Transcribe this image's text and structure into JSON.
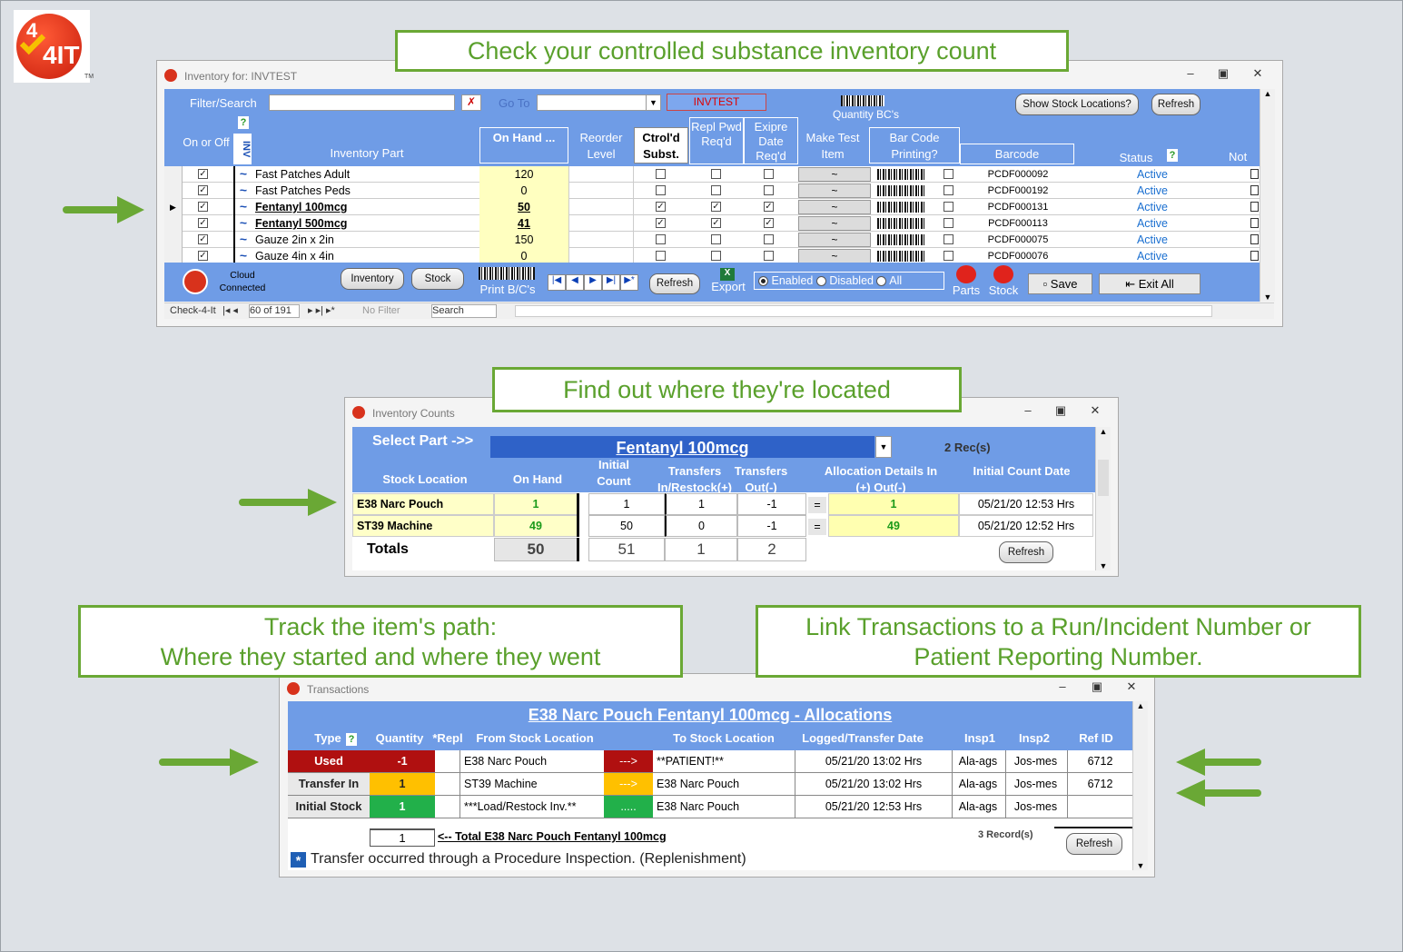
{
  "callouts": {
    "c1": "Check your controlled substance inventory count",
    "c2": "Find out where they're located",
    "c3a": "Track the item's path:",
    "c3b": "Where they started and where they went",
    "c4a": "Link Transactions to a Run/Incident Number or",
    "c4b": "Patient Reporting Number."
  },
  "logo": {
    "text": "4IT",
    "tm": "TM"
  },
  "inv": {
    "title": "Inventory for: INVTEST",
    "filter_label": "Filter/Search",
    "goto_label": "Go To",
    "invtest": "INVTEST",
    "qty_bc": "Quantity BC's",
    "show_stock_btn": "Show Stock Locations?",
    "refresh_btn": "Refresh",
    "headers": {
      "onoff": "On or Off",
      "inv": "INV",
      "part": "Inventory Part",
      "onhand": "On Hand ...",
      "reorder": "Reorder Level",
      "ctrl": "Ctrol'd Subst.",
      "repl": "Repl Pwd Req'd",
      "expire": "Exipre Date Req'd",
      "maketest": "Make Test Item",
      "barcodeprint": "Bar Code Printing?",
      "barcode": "Barcode",
      "status": "Status",
      "notes": "Not"
    },
    "rows": [
      {
        "name": "Fast Patches Adult",
        "onhand": "120",
        "ctrl": false,
        "repl": false,
        "exp": false,
        "code": "PCDF000092",
        "status": "Active",
        "bold": false
      },
      {
        "name": "Fast Patches Peds",
        "onhand": "0",
        "ctrl": false,
        "repl": false,
        "exp": false,
        "code": "PCDF000192",
        "status": "Active",
        "bold": false
      },
      {
        "name": "Fentanyl 100mcg",
        "onhand": "50",
        "ctrl": true,
        "repl": true,
        "exp": true,
        "code": "PCDF000131",
        "status": "Active",
        "bold": true
      },
      {
        "name": "Fentanyl 500mcg",
        "onhand": "41",
        "ctrl": true,
        "repl": true,
        "exp": true,
        "code": "PCDF000113",
        "status": "Active",
        "bold": true
      },
      {
        "name": "Gauze 2in x 2in",
        "onhand": "150",
        "ctrl": false,
        "repl": false,
        "exp": false,
        "code": "PCDF000075",
        "status": "Active",
        "bold": false
      },
      {
        "name": "Gauze 4in x 4in",
        "onhand": "0",
        "ctrl": false,
        "repl": false,
        "exp": false,
        "code": "PCDF000076",
        "status": "Active",
        "bold": false
      }
    ],
    "footer": {
      "cloud": "Cloud",
      "connected": "Connected",
      "inventory_btn": "Inventory",
      "stock_btn": "Stock",
      "print_bc": "Print B/C's",
      "refresh": "Refresh",
      "export": "Export",
      "enabled": "Enabled",
      "disabled": "Disabled",
      "all": "All",
      "parts": "Parts",
      "stock": "Stock",
      "save": "Save",
      "exit": "Exit All"
    },
    "nav": {
      "form": "Check-4-It",
      "record": "60 of 191",
      "nofilter": "No Filter",
      "search": "Search"
    }
  },
  "counts": {
    "title": "Inventory Counts",
    "select_part": "Select Part ->>",
    "part": "Fentanyl 100mcg",
    "recs": "2 Rec(s)",
    "headers": {
      "location": "Stock Location",
      "onhand": "On Hand",
      "initial": "Initial Count",
      "transfers_in": "Transfers In/Restock(+)",
      "transfers_out": "Transfers Out(-)",
      "alloc": "Allocation Details In (+) Out(-)",
      "initdate": "Initial Count Date"
    },
    "rows": [
      {
        "loc": "E38 Narc Pouch",
        "onhand": "1",
        "initial": "1",
        "tin": "1",
        "tout": "-1",
        "eq": "=",
        "alloc": "1",
        "date": "05/21/20  12:53 Hrs"
      },
      {
        "loc": "ST39 Machine",
        "onhand": "49",
        "initial": "50",
        "tin": "0",
        "tout": "-1",
        "eq": "=",
        "alloc": "49",
        "date": "05/21/20  12:52 Hrs"
      }
    ],
    "totals": {
      "label": "Totals",
      "onhand": "50",
      "initial": "51",
      "tin": "1",
      "tout": "2"
    },
    "refresh": "Refresh"
  },
  "trans": {
    "title": "Transactions",
    "heading": "E38 Narc Pouch Fentanyl 100mcg - Allocations",
    "headers": {
      "type": "Type",
      "qty": "Quantity",
      "repl": "*Repl",
      "from": "From Stock Location",
      "to": "To Stock Location",
      "date": "Logged/Transfer Date",
      "insp1": "Insp1",
      "insp2": "Insp2",
      "ref": "Ref ID"
    },
    "rows": [
      {
        "type": "Used",
        "qty": "-1",
        "from": "E38 Narc Pouch",
        "arrow": "--->",
        "to": "**PATIENT!**",
        "date": "05/21/20  13:02 Hrs",
        "insp1": "Ala-ags",
        "insp2": "Jos-mes",
        "ref": "6712"
      },
      {
        "type": "Transfer In",
        "qty": "1",
        "from": "ST39 Machine",
        "arrow": "--->",
        "to": "E38 Narc Pouch",
        "date": "05/21/20  13:02 Hrs",
        "insp1": "Ala-ags",
        "insp2": "Jos-mes",
        "ref": "6712"
      },
      {
        "type": "Initial Stock",
        "qty": "1",
        "from": "***Load/Restock Inv.**",
        "arrow": ".....",
        "to": "E38 Narc Pouch",
        "date": "05/21/20  12:53 Hrs",
        "insp1": "Ala-ags",
        "insp2": "Jos-mes",
        "ref": ""
      }
    ],
    "total_qty": "1",
    "total_label": "<-- Total E38 Narc Pouch Fentanyl 100mcg",
    "records": "3 Record(s)",
    "refresh": "Refresh",
    "note_mark": "*",
    "note": "Transfer occurred through a Procedure Inspection.  (Replenishment)"
  },
  "colors": {
    "callout_border": "#6aa835",
    "callout_text": "#5aa02c",
    "header_blue": "#6f9ce6",
    "used_red": "#b01010",
    "transfer_orange": "#ffc000",
    "initial_green": "#22b04a"
  }
}
